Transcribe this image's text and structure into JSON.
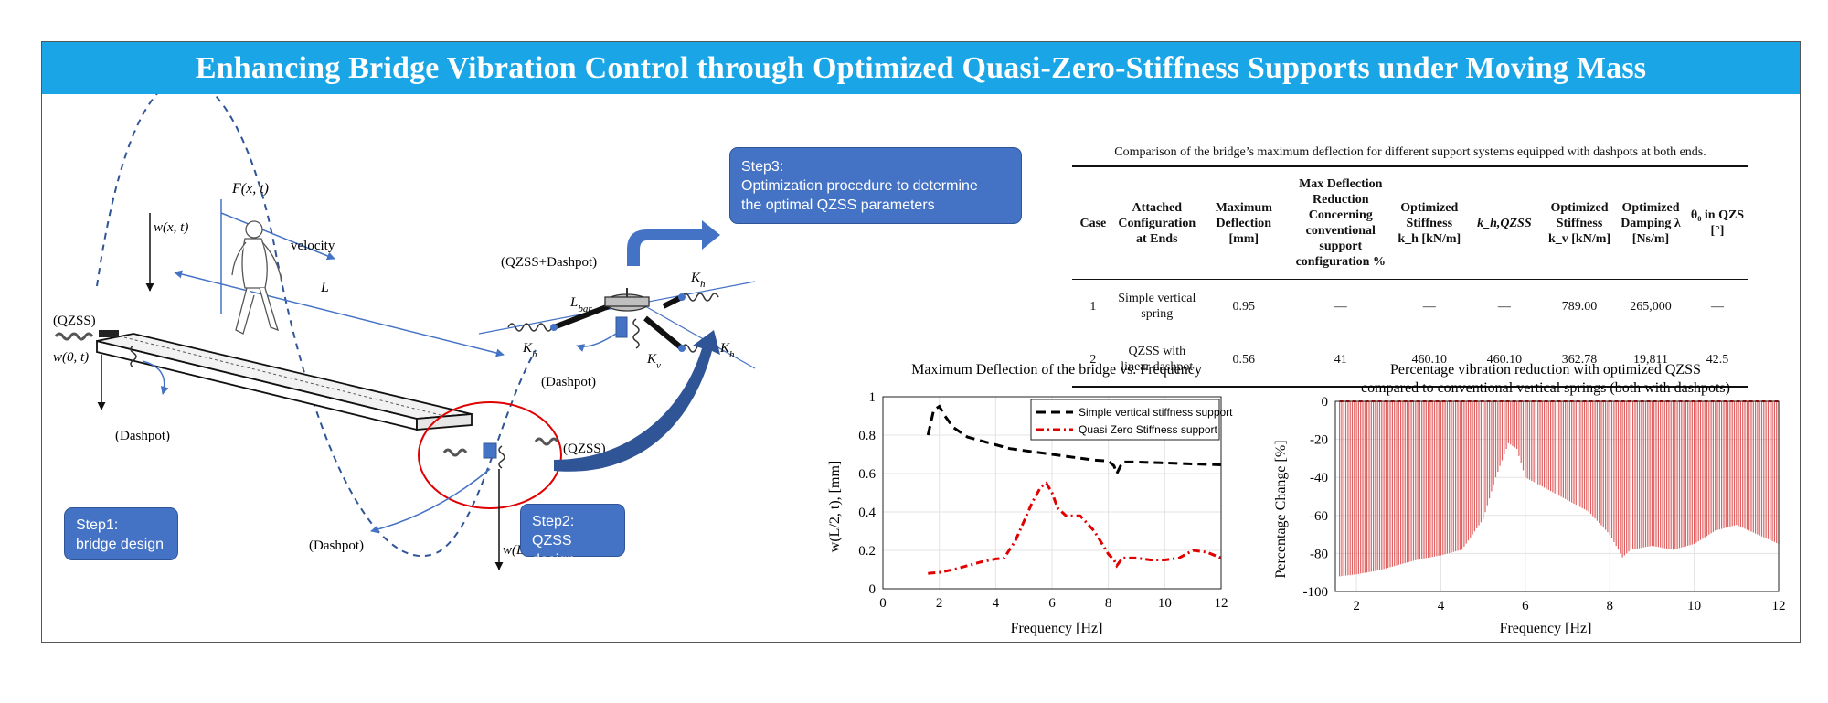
{
  "title": "Enhancing Bridge Vibration Control through Optimized Quasi-Zero-Stiffness Supports under Moving Mass",
  "steps": {
    "step1": [
      "Step1:",
      "bridge design"
    ],
    "step2": [
      "Step2:",
      "QZSS design"
    ],
    "step3": [
      "Step3:",
      "Optimization procedure to determine",
      "the optimal QZSS parameters"
    ]
  },
  "diagram_labels": {
    "force": "F(x, t)",
    "wxt": "w(x, t)",
    "velocity": "velocity",
    "length": "L",
    "qzss_left": "(QZSS)",
    "w0t": "w(0, t)",
    "dashpot_left": "(Dashpot)",
    "qzss_right": "(QZSS)",
    "dashpot_right": "(Dashpot)",
    "wLt": "w(L, t)",
    "detail_title": "(QZSS+Dashpot)",
    "lbar": "L",
    "lbar_sub": "bar",
    "kh": "K",
    "kh_sub": "h",
    "kv": "K",
    "kv_sub": "v",
    "dashpot_detail": "(Dashpot)"
  },
  "table": {
    "caption": "Comparison of the bridge’s maximum deflection for different support systems equipped with dashpots at both ends.",
    "headers": [
      "Case",
      "Attached Configuration at Ends",
      "Maximum Deflection [mm]",
      "Max Deflection Reduction Concerning conventional support configuration %",
      "Optimized Stiffness k_h [kN/m]",
      "k_h,QZSS",
      "Optimized Stiffness k_v [kN/m]",
      "Optimized Damping λ [Ns/m]",
      "θ₀ in QZS [°]"
    ],
    "rows": [
      [
        "1",
        "Simple vertical spring",
        "0.95",
        "—",
        "—",
        "—",
        "789.00",
        "265,000",
        "—"
      ],
      [
        "2",
        "QZSS with linear dashpot",
        "0.56",
        "41",
        "460.10",
        "460.10",
        "362.78",
        "19,811",
        "42.5"
      ]
    ]
  },
  "chart_data": [
    {
      "type": "line",
      "title": "Maximum Deflection of the bridge vs. Frequency",
      "xlabel": "Frequency [Hz]",
      "ylabel": "w(L/2, t), [mm]",
      "xlim": [
        0,
        12
      ],
      "ylim": [
        0,
        1
      ],
      "xticks": [
        0,
        2,
        4,
        6,
        8,
        10,
        12
      ],
      "yticks": [
        0,
        0.2,
        0.4,
        0.6,
        0.8,
        1
      ],
      "grid": true,
      "legend_position": "top-right",
      "series": [
        {
          "name": "Simple vertical stiffness support",
          "color": "#000000",
          "x": [
            1.6,
            1.8,
            2.0,
            2.2,
            2.5,
            2.8,
            3.0,
            3.5,
            4.0,
            4.5,
            5.0,
            5.5,
            6.0,
            6.5,
            7.0,
            7.5,
            8.0,
            8.2,
            8.3,
            8.4,
            8.5,
            9.0,
            10.0,
            11.0,
            12.0
          ],
          "y": [
            0.8,
            0.93,
            0.95,
            0.9,
            0.84,
            0.81,
            0.79,
            0.77,
            0.75,
            0.73,
            0.72,
            0.71,
            0.7,
            0.69,
            0.68,
            0.67,
            0.665,
            0.64,
            0.6,
            0.63,
            0.66,
            0.66,
            0.655,
            0.65,
            0.645
          ]
        },
        {
          "name": "Quasi Zero Stiffness support",
          "color": "#e00000",
          "x": [
            1.6,
            2.0,
            2.5,
            3.0,
            3.5,
            4.0,
            4.3,
            4.7,
            5.0,
            5.3,
            5.6,
            5.8,
            6.0,
            6.2,
            6.5,
            7.0,
            7.5,
            8.0,
            8.2,
            8.3,
            8.5,
            9.0,
            9.5,
            10.0,
            10.5,
            11.0,
            11.5,
            12.0
          ],
          "y": [
            0.08,
            0.085,
            0.1,
            0.12,
            0.14,
            0.155,
            0.16,
            0.25,
            0.35,
            0.45,
            0.53,
            0.55,
            0.5,
            0.42,
            0.38,
            0.38,
            0.3,
            0.18,
            0.15,
            0.12,
            0.16,
            0.16,
            0.15,
            0.15,
            0.16,
            0.2,
            0.19,
            0.16
          ]
        }
      ]
    },
    {
      "type": "bar",
      "title": "Percentage vibration reduction with optimized QZSS",
      "subtitle": "compared to conventional vertical springs (both with dashpots)",
      "xlabel": "Frequency [Hz]",
      "ylabel": "Percentage Change [%]",
      "xlim": [
        1.5,
        12
      ],
      "ylim": [
        -100,
        0
      ],
      "xticks": [
        2,
        4,
        6,
        8,
        10,
        12
      ],
      "yticks": [
        -100,
        -80,
        -60,
        -40,
        -20,
        0
      ],
      "grid": true,
      "color": "#e06060",
      "envelope_x": [
        1.6,
        2.0,
        2.5,
        3.0,
        3.5,
        4.0,
        4.5,
        5.0,
        5.3,
        5.6,
        5.8,
        6.0,
        6.5,
        7.0,
        7.5,
        8.0,
        8.3,
        8.5,
        9.0,
        9.5,
        10.0,
        10.5,
        11.0,
        11.5,
        12.0
      ],
      "envelope_y": [
        -92,
        -91,
        -89,
        -86,
        -83,
        -81,
        -78,
        -62,
        -40,
        -22,
        -25,
        -40,
        -46,
        -52,
        -58,
        -70,
        -82,
        -78,
        -76,
        -78,
        -75,
        -68,
        -65,
        -70,
        -75
      ]
    }
  ]
}
